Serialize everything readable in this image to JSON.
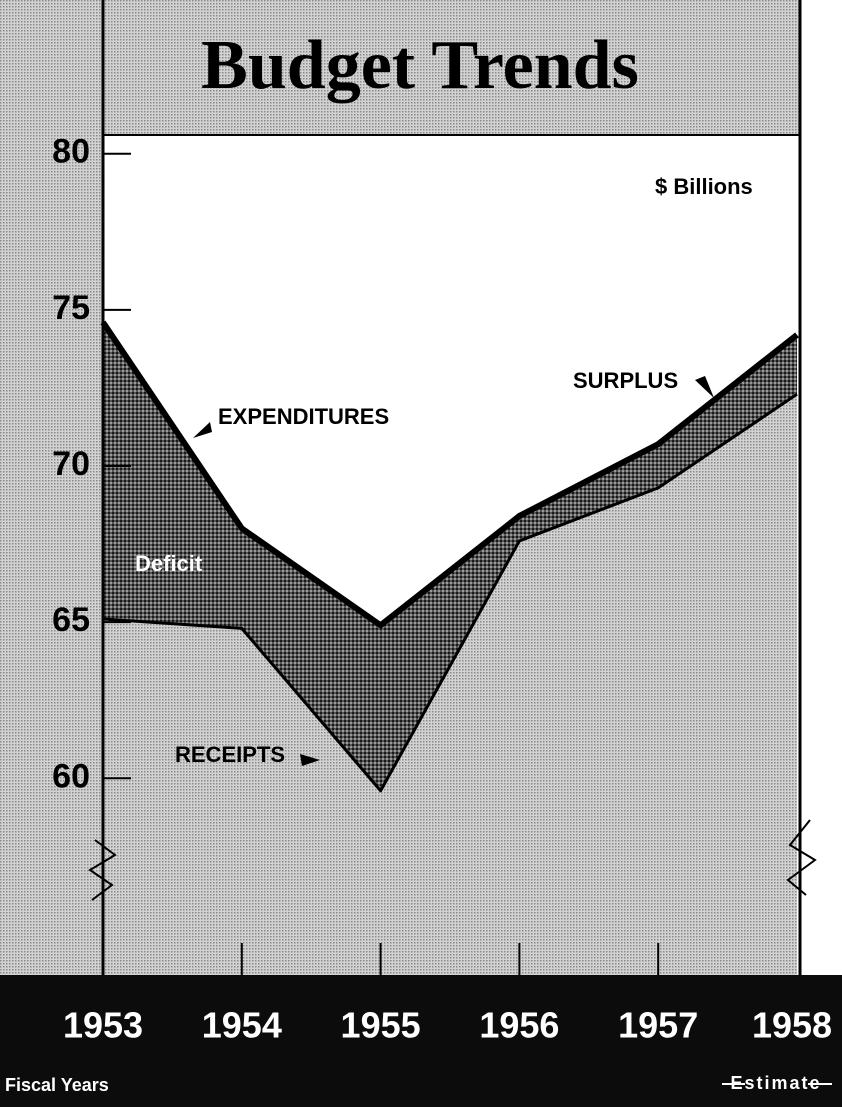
{
  "chart_data": {
    "type": "area",
    "title": "Budget Trends",
    "subtitle": "$ Billions",
    "categories": [
      "1953",
      "1954",
      "1955",
      "1956",
      "1957",
      "1958"
    ],
    "series": [
      {
        "name": "EXPENDITURES",
        "color": "#000000",
        "values": [
          74.6,
          68.0,
          64.9,
          68.4,
          70.7,
          74.2
        ]
      },
      {
        "name": "RECEIPTS",
        "color": "#000000",
        "values": [
          65.1,
          64.8,
          59.6,
          67.6,
          69.3,
          72.3
        ]
      }
    ],
    "annotations": [
      "Deficit",
      "SURPLUS"
    ],
    "x_label": "Fiscal Years",
    "note": "Estimate",
    "ylim": [
      53.7,
      80.6
    ],
    "yticks": [
      60,
      65,
      70,
      75,
      80
    ]
  }
}
